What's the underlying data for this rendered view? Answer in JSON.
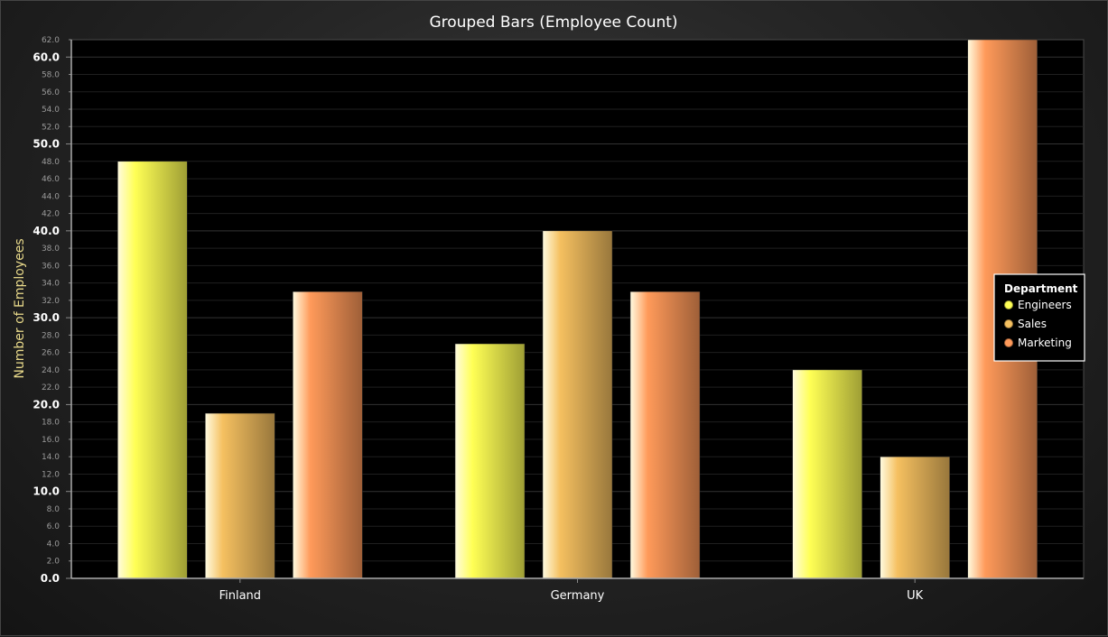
{
  "chart_data": {
    "type": "bar",
    "title": "Grouped Bars (Employee Count)",
    "xlabel": "",
    "ylabel": "Number of Employees",
    "categories": [
      "Finland",
      "Germany",
      "UK"
    ],
    "series": [
      {
        "name": "Engineers",
        "values": [
          48,
          27,
          24
        ],
        "color": "#ffff55"
      },
      {
        "name": "Sales",
        "values": [
          19,
          40,
          14
        ],
        "color": "#f5c060"
      },
      {
        "name": "Marketing",
        "values": [
          33,
          33,
          62
        ],
        "color": "#ff9a5a"
      }
    ],
    "ylim": [
      0,
      62
    ],
    "y_ticks": [
      "0.0",
      "2.0",
      "4.0",
      "6.0",
      "8.0",
      "10.0",
      "12.0",
      "14.0",
      "16.0",
      "18.0",
      "20.0",
      "22.0",
      "24.0",
      "26.0",
      "28.0",
      "30.0",
      "32.0",
      "34.0",
      "36.0",
      "38.0",
      "40.0",
      "42.0",
      "44.0",
      "46.0",
      "48.0",
      "50.0",
      "52.0",
      "54.0",
      "56.0",
      "58.0",
      "60.0",
      "62.0"
    ],
    "legend": {
      "title": "Department",
      "position": "right"
    },
    "grid": true
  }
}
